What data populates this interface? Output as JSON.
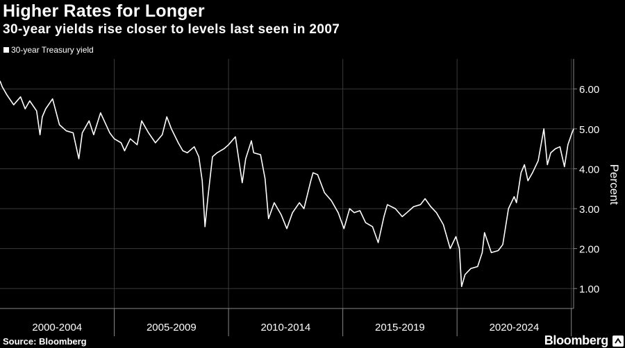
{
  "header": {
    "title": "Higher Rates for Longer",
    "subtitle": "30-year yields rise closer to levels last seen in 2007"
  },
  "footer": {
    "source": "Source: Bloomberg",
    "brand": "Bloomberg"
  },
  "colors": {
    "background": "#000000",
    "line": "#ffffff",
    "grid": "#3a3a3a",
    "axis": "#888888"
  },
  "chart_data": {
    "type": "line",
    "title": "Higher Rates for Longer",
    "subtitle": "30-year yields rise closer to levels last seen in 2007",
    "ylabel": "Percent",
    "xlabel": "",
    "y_axis_side": "right",
    "ylim": [
      0.5,
      6.75
    ],
    "yticks": [
      "1.00",
      "2.00",
      "3.00",
      "4.00",
      "5.00",
      "6.00"
    ],
    "xlim": [
      2000,
      2025.1
    ],
    "x_period_labels": [
      "2000-2004",
      "2005-2009",
      "2010-2014",
      "2015-2019",
      "2020-2024"
    ],
    "grid": true,
    "legend_position": "top-left",
    "series": [
      {
        "name": "30-year Treasury yield",
        "x": [
          2000.0,
          2000.1,
          2000.3,
          2000.6,
          2000.9,
          2001.1,
          2001.3,
          2001.6,
          2001.75,
          2001.85,
          2002.0,
          2002.3,
          2002.6,
          2002.9,
          2003.2,
          2003.45,
          2003.6,
          2003.9,
          2004.1,
          2004.4,
          2004.8,
          2005.0,
          2005.3,
          2005.45,
          2005.7,
          2006.0,
          2006.2,
          2006.5,
          2006.8,
          2007.1,
          2007.3,
          2007.5,
          2007.8,
          2008.0,
          2008.2,
          2008.5,
          2008.7,
          2008.85,
          2008.97,
          2009.1,
          2009.3,
          2009.5,
          2009.8,
          2010.0,
          2010.3,
          2010.6,
          2010.75,
          2011.0,
          2011.1,
          2011.4,
          2011.6,
          2011.75,
          2012.0,
          2012.3,
          2012.55,
          2012.8,
          2013.1,
          2013.3,
          2013.6,
          2013.7,
          2013.9,
          2014.2,
          2014.5,
          2014.8,
          2015.05,
          2015.3,
          2015.5,
          2015.75,
          2016.0,
          2016.3,
          2016.55,
          2016.8,
          2016.95,
          2017.3,
          2017.6,
          2017.8,
          2018.1,
          2018.4,
          2018.6,
          2018.85,
          2019.1,
          2019.4,
          2019.7,
          2019.95,
          2020.1,
          2020.2,
          2020.35,
          2020.6,
          2020.9,
          2021.1,
          2021.2,
          2021.5,
          2021.8,
          2022.0,
          2022.25,
          2022.5,
          2022.6,
          2022.8,
          2022.95,
          2023.1,
          2023.3,
          2023.55,
          2023.8,
          2023.95,
          2024.1,
          2024.3,
          2024.5,
          2024.7,
          2024.85,
          2025.0,
          2025.1
        ],
        "values": [
          6.2,
          6.05,
          5.85,
          5.6,
          5.8,
          5.5,
          5.7,
          5.45,
          4.85,
          5.3,
          5.5,
          5.75,
          5.1,
          4.95,
          4.9,
          4.25,
          4.9,
          5.2,
          4.85,
          5.4,
          4.9,
          4.75,
          4.65,
          4.45,
          4.75,
          4.6,
          5.2,
          4.9,
          4.65,
          4.85,
          5.3,
          5.0,
          4.65,
          4.45,
          4.4,
          4.55,
          4.3,
          3.7,
          2.55,
          3.3,
          4.3,
          4.4,
          4.5,
          4.6,
          4.8,
          3.65,
          4.25,
          4.7,
          4.4,
          4.35,
          3.75,
          2.75,
          3.15,
          2.85,
          2.5,
          2.9,
          3.15,
          3.0,
          3.7,
          3.9,
          3.85,
          3.4,
          3.2,
          2.9,
          2.5,
          3.0,
          2.9,
          2.95,
          2.65,
          2.55,
          2.15,
          2.8,
          3.1,
          3.0,
          2.8,
          2.9,
          3.05,
          3.1,
          3.25,
          3.05,
          2.9,
          2.6,
          2.0,
          2.3,
          2.0,
          1.05,
          1.35,
          1.5,
          1.55,
          1.9,
          2.4,
          1.9,
          1.95,
          2.1,
          3.0,
          3.3,
          3.15,
          3.9,
          4.1,
          3.7,
          3.9,
          4.2,
          5.0,
          4.1,
          4.4,
          4.5,
          4.55,
          4.05,
          4.6,
          4.85,
          5.0
        ]
      }
    ]
  }
}
